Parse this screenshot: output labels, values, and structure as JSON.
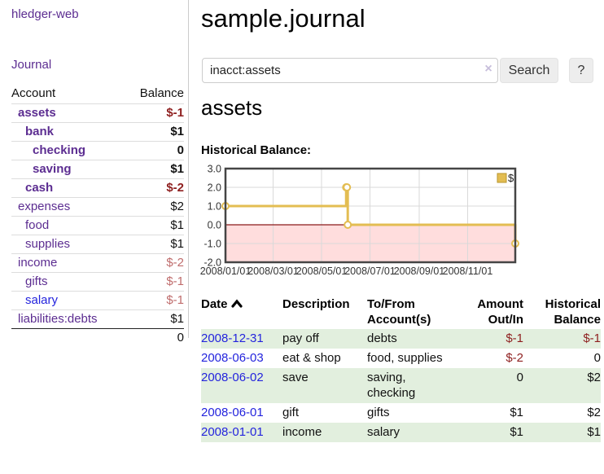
{
  "colors": {
    "purple": "#5c2d91",
    "blue": "#2424dd",
    "neg": "#8e1f1f",
    "neg-soft": "#bf6c6c",
    "row-green": "#e2efde",
    "gold": "#e3bd52"
  },
  "sidebar": {
    "app_title": "hledger-web",
    "journal_label": "Journal",
    "accounts_table": {
      "headers": {
        "account": "Account",
        "balance": "Balance"
      },
      "rows": [
        {
          "label": "assets",
          "level": 1,
          "bold": true,
          "balance": "$-1",
          "balance_class": "neg-strong"
        },
        {
          "label": "bank",
          "level": 2,
          "bold": true,
          "balance": "$1",
          "balance_class": ""
        },
        {
          "label": "checking",
          "level": 3,
          "bold": true,
          "balance": "0",
          "balance_class": ""
        },
        {
          "label": "saving",
          "level": 3,
          "bold": true,
          "balance": "$1",
          "balance_class": ""
        },
        {
          "label": "cash",
          "level": 2,
          "bold": true,
          "balance": "$-2",
          "balance_class": "neg-strong"
        },
        {
          "label": "expenses",
          "level": 1,
          "bold": false,
          "balance": "$2",
          "balance_class": ""
        },
        {
          "label": "food",
          "level": 2,
          "bold": false,
          "balance": "$1",
          "balance_class": ""
        },
        {
          "label": "supplies",
          "level": 2,
          "bold": false,
          "balance": "$1",
          "balance_class": ""
        },
        {
          "label": "income",
          "level": 1,
          "bold": false,
          "balance": "$-2",
          "balance_class": "neg-soft"
        },
        {
          "label": "gifts",
          "level": 2,
          "bold": false,
          "balance": "$-1",
          "balance_class": "neg-soft"
        },
        {
          "label": "salary",
          "level": 2,
          "bold": false,
          "balance": "$-1",
          "balance_class": "neg-soft",
          "link_color": "blue"
        },
        {
          "label": "liabilities:debts",
          "level": 1,
          "bold": false,
          "balance": "$1",
          "balance_class": ""
        }
      ],
      "total": "0"
    }
  },
  "main": {
    "title": "sample.journal",
    "search": {
      "value": "inacct:assets",
      "clear_icon": "×",
      "button_label": "Search",
      "help_label": "?"
    },
    "account_heading": "assets",
    "chart_label": "Historical Balance:",
    "register_table": {
      "headers": {
        "date": "Date",
        "description": "Description",
        "tofrom_line1": "To/From",
        "tofrom_line2": "Account(s)",
        "amount_line1": "Amount",
        "amount_line2": "Out/In",
        "balance_line1": "Historical",
        "balance_line2": "Balance"
      },
      "rows": [
        {
          "date": "2008-12-31",
          "description": "pay off",
          "accounts": "debts",
          "amount": "$-1",
          "amount_neg": true,
          "balance": "$-1",
          "balance_neg": true,
          "shaded": true
        },
        {
          "date": "2008-06-03",
          "description": "eat & shop",
          "accounts": "food, supplies",
          "amount": "$-2",
          "amount_neg": true,
          "balance": "0",
          "balance_neg": false,
          "shaded": false
        },
        {
          "date": "2008-06-02",
          "description": "save",
          "accounts": "saving, checking",
          "amount": "0",
          "amount_neg": false,
          "balance": "$2",
          "balance_neg": false,
          "shaded": true
        },
        {
          "date": "2008-06-01",
          "description": "gift",
          "accounts": "gifts",
          "amount": "$1",
          "amount_neg": false,
          "balance": "$2",
          "balance_neg": false,
          "shaded": false
        },
        {
          "date": "2008-01-01",
          "description": "income",
          "accounts": "salary",
          "amount": "$1",
          "amount_neg": false,
          "balance": "$1",
          "balance_neg": false,
          "shaded": true
        }
      ]
    }
  },
  "chart_data": {
    "type": "line",
    "title": "Historical Balance",
    "step": true,
    "series": [
      {
        "name": "$",
        "color": "#e3bd52",
        "points": [
          [
            "2008-01-01",
            1
          ],
          [
            "2008-06-01",
            2
          ],
          [
            "2008-06-02",
            2
          ],
          [
            "2008-06-03",
            0
          ],
          [
            "2008-12-31",
            -1
          ]
        ]
      }
    ],
    "x_range": [
      "2008-01-01",
      "2008-12-31"
    ],
    "x_ticks": [
      "2008/01/01",
      "2008/03/01",
      "2008/05/01",
      "2008/07/01",
      "2008/09/01",
      "2008/11/01"
    ],
    "y_ticks": [
      3.0,
      2.0,
      1.0,
      0.0,
      -1.0,
      -2.0
    ],
    "ylim": [
      -2.0,
      3.0
    ],
    "grid": true,
    "legend_position": "top-right",
    "negative_region_color": "#ffdddd",
    "zero_line_color": "#8b1a1a",
    "grid_color": "#d9d9d9",
    "border_color": "#454545"
  }
}
